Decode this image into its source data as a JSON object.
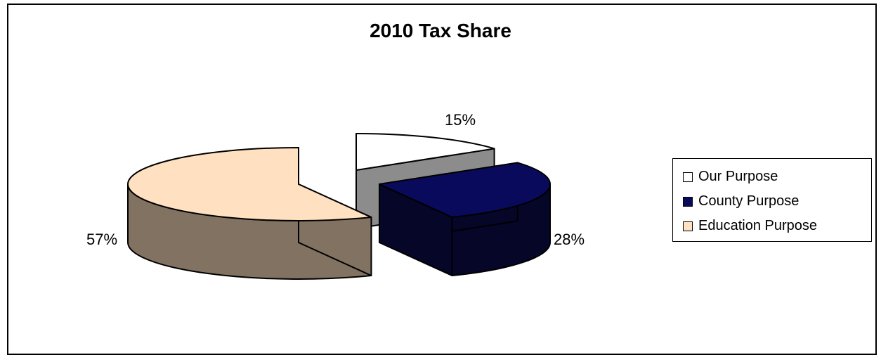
{
  "chart_data": {
    "type": "pie",
    "title": "2010 Tax Share",
    "categories": [
      "Our Purpose",
      "County Purpose",
      "Education Purpose"
    ],
    "values": [
      15,
      28,
      57
    ],
    "data_labels": [
      "15%",
      "28%",
      "57%"
    ],
    "colors": [
      "#ffffff",
      "#0a0a5c",
      "#ffe0c0"
    ],
    "side_colors": [
      "#8c8c8c",
      "#060628",
      "#827262"
    ],
    "legend_position": "right",
    "style": "3d-exploded"
  }
}
